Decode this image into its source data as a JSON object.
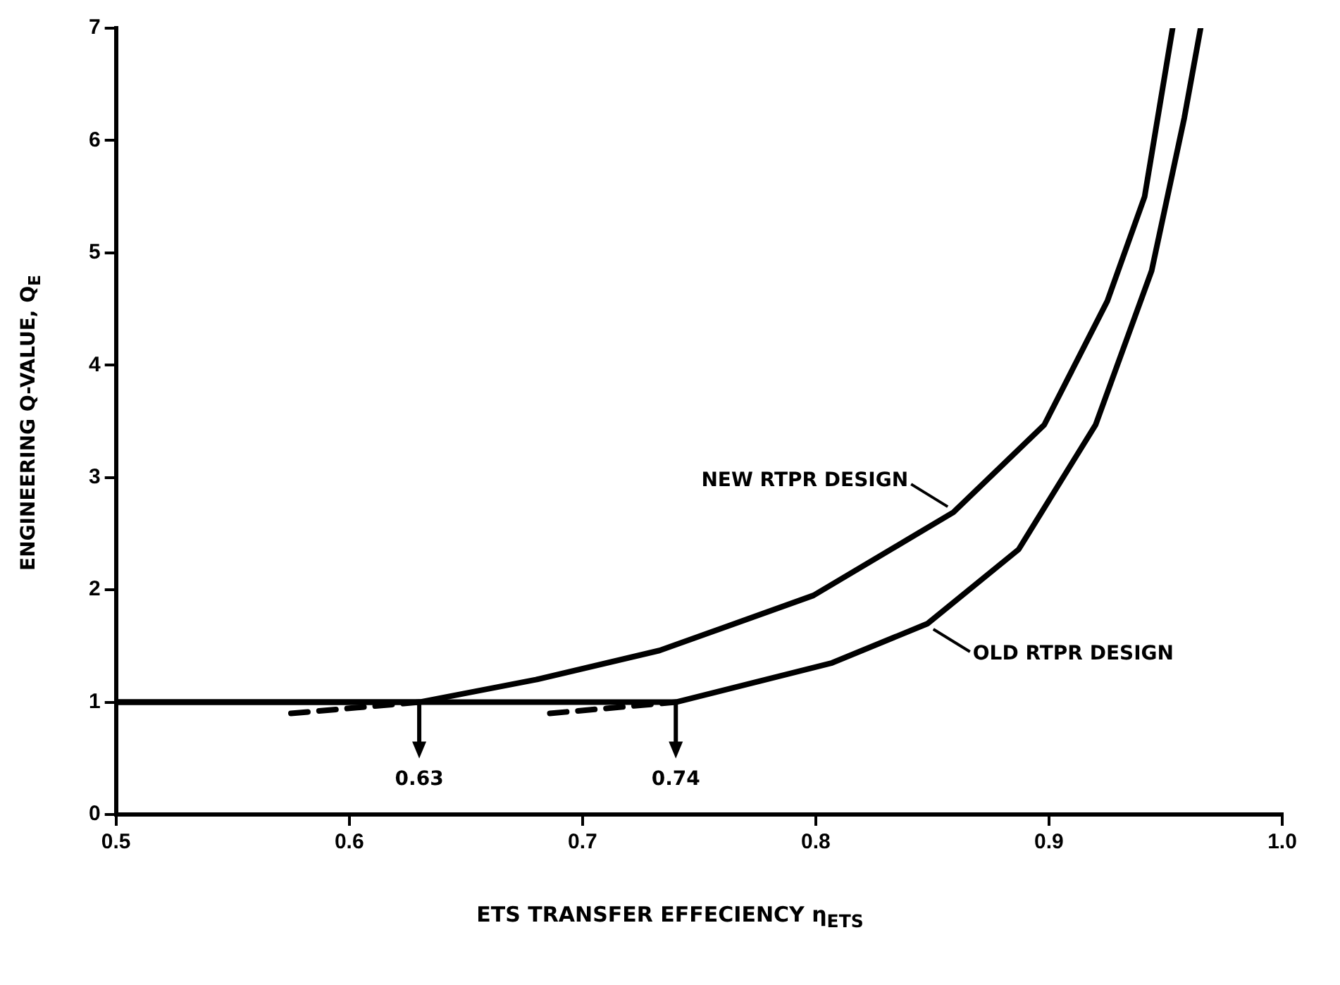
{
  "chart_data": {
    "type": "line",
    "xlabel": "ETS TRANSFER EFFECIENCY η$_{ETS}$",
    "ylabel": "ENGINEERING Q-VALUE, Q$_{E}$",
    "xlim": [
      0.5,
      1.0
    ],
    "xticks": [
      0.5,
      0.6,
      0.7,
      0.8,
      0.9,
      {
        "value": 1.0,
        "label": "1.0"
      }
    ],
    "ylim": [
      0,
      7
    ],
    "yticks": [
      0,
      1,
      2,
      3,
      4,
      5,
      6,
      7
    ],
    "grid": false,
    "marker": "none",
    "line_style": "solid",
    "series": [
      {
        "name": "NEW RTPR DESIGN",
        "color": "#000000",
        "x": [
          0.5,
          0.63,
          0.68,
          0.733,
          0.799,
          0.859,
          0.898,
          0.925,
          0.941,
          0.953
        ],
        "values": [
          1,
          1,
          1.2,
          1.46,
          1.95,
          2.69,
          3.47,
          4.57,
          5.5,
          7
        ]
      },
      {
        "name": "OLD RTPR DESIGN",
        "color": "#000000",
        "x": [
          0.5,
          0.74,
          0.807,
          0.848,
          0.887,
          0.92,
          0.944,
          0.958,
          0.965
        ],
        "values": [
          1,
          1,
          1.35,
          1.7,
          2.36,
          3.47,
          4.84,
          6.2,
          7
        ]
      },
      {
        "color": "#000000",
        "line_style": "dashed",
        "x": [
          0.575,
          0.63
        ],
        "values": [
          0.9,
          1
        ]
      },
      {
        "color": "#000000",
        "line_style": "dashed",
        "x": [
          0.686,
          0.74
        ],
        "values": [
          0.9,
          1
        ]
      }
    ],
    "annotations": [
      {
        "text": "0.63",
        "x": 0.63,
        "y": 1
      },
      {
        "text": "0.74",
        "x": 0.74,
        "y": 1
      }
    ]
  }
}
